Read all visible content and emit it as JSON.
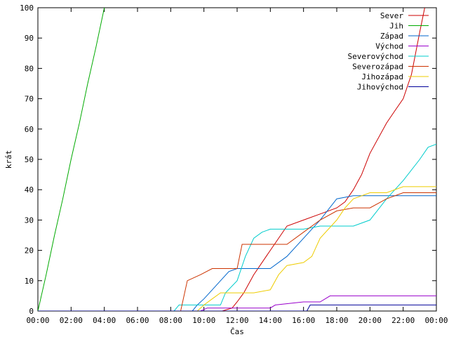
{
  "chart_data": {
    "type": "line",
    "title": "",
    "xlabel": "Čas",
    "ylabel": "krát",
    "xlim": [
      0,
      24
    ],
    "ylim": [
      0,
      100
    ],
    "x_ticks": [
      {
        "value": 0,
        "label": "00:00"
      },
      {
        "value": 2,
        "label": "02:00"
      },
      {
        "value": 4,
        "label": "04:00"
      },
      {
        "value": 6,
        "label": "06:00"
      },
      {
        "value": 8,
        "label": "08:00"
      },
      {
        "value": 10,
        "label": "10:00"
      },
      {
        "value": 12,
        "label": "12:00"
      },
      {
        "value": 14,
        "label": "14:00"
      },
      {
        "value": 16,
        "label": "16:00"
      },
      {
        "value": 18,
        "label": "18:00"
      },
      {
        "value": 20,
        "label": "20:00"
      },
      {
        "value": 22,
        "label": "22:00"
      },
      {
        "value": 24,
        "label": "00:00"
      }
    ],
    "y_ticks": [
      {
        "value": 0,
        "label": "0"
      },
      {
        "value": 10,
        "label": "10"
      },
      {
        "value": 20,
        "label": "20"
      },
      {
        "value": 30,
        "label": "30"
      },
      {
        "value": 40,
        "label": "40"
      },
      {
        "value": 50,
        "label": "50"
      },
      {
        "value": 60,
        "label": "60"
      },
      {
        "value": 70,
        "label": "70"
      },
      {
        "value": 80,
        "label": "80"
      },
      {
        "value": 90,
        "label": "90"
      },
      {
        "value": 100,
        "label": "100"
      }
    ],
    "grid": false,
    "legend_position": "top-right",
    "series": [
      {
        "name": "Sever",
        "color": "#cc0000",
        "x": [
          0,
          11.1,
          11.7,
          12.0,
          12.4,
          13.0,
          14.0,
          15.0,
          16.0,
          17.0,
          18.0,
          18.5,
          19.0,
          19.5,
          20.0,
          21.0,
          21.5,
          22.0,
          22.5,
          23.0,
          23.3
        ],
        "y": [
          0,
          0,
          1,
          3,
          6,
          12,
          20,
          28,
          30,
          32,
          34,
          36,
          40,
          45,
          52,
          62,
          66,
          70,
          78,
          92,
          100
        ]
      },
      {
        "name": "Jih",
        "color": "#00aa00",
        "x": [
          0,
          0.5,
          1.0,
          1.5,
          2.0,
          2.5,
          3.0,
          3.5,
          4.0
        ],
        "y": [
          0,
          12,
          25,
          37,
          50,
          62,
          75,
          87,
          100
        ]
      },
      {
        "name": "Západ",
        "color": "#0066cc",
        "x": [
          0,
          9.3,
          9.6,
          10.0,
          10.5,
          11.0,
          11.5,
          12.0,
          14.0,
          15.0,
          16.0,
          17.0,
          18.0,
          19.0,
          20.0,
          21.0,
          24.0
        ],
        "y": [
          0,
          0,
          2,
          4,
          7,
          10,
          13,
          14,
          14,
          18,
          24,
          30,
          37,
          38,
          38,
          38,
          38
        ]
      },
      {
        "name": "Východ",
        "color": "#9900cc",
        "x": [
          0,
          9.8,
          10.2,
          14.0,
          14.3,
          16.0,
          17.0,
          17.6,
          24.0
        ],
        "y": [
          0,
          0,
          1,
          1,
          2,
          3,
          3,
          5,
          5
        ]
      },
      {
        "name": "Severovýchod",
        "color": "#00cccc",
        "x": [
          0,
          8.2,
          8.5,
          11.0,
          11.3,
          12.0,
          12.5,
          13.0,
          13.5,
          14.0,
          14.5,
          16.0,
          17.0,
          18.0,
          19.0,
          20.0,
          21.0,
          22.0,
          23.0,
          23.5,
          24.0
        ],
        "y": [
          0,
          0,
          2,
          2,
          6,
          10,
          18,
          24,
          26,
          27,
          27,
          27,
          28,
          28,
          28,
          30,
          37,
          43,
          50,
          54,
          55
        ]
      },
      {
        "name": "Severozápad",
        "color": "#cc3300",
        "x": [
          0,
          8.6,
          9.0,
          9.8,
          10.5,
          12.0,
          12.3,
          14.0,
          15.0,
          16.0,
          17.0,
          18.0,
          19.0,
          20.0,
          21.0,
          22.0,
          24.0
        ],
        "y": [
          0,
          0,
          10,
          12,
          14,
          14,
          22,
          22,
          22,
          26,
          30,
          33,
          34,
          34,
          37,
          39,
          39
        ]
      },
      {
        "name": "Jihozápad",
        "color": "#eecc00",
        "x": [
          0,
          9.6,
          10.0,
          10.5,
          11.0,
          13.0,
          14.0,
          14.5,
          15.0,
          16.0,
          16.5,
          17.0,
          18.0,
          18.5,
          19.0,
          20.0,
          21.0,
          22.0,
          24.0
        ],
        "y": [
          0,
          0,
          2,
          4,
          6,
          6,
          7,
          12,
          15,
          16,
          18,
          24,
          30,
          34,
          37,
          39,
          39,
          41,
          41
        ]
      },
      {
        "name": "Jihovýchod",
        "color": "#000099",
        "x": [
          0,
          16.2,
          16.4,
          24.0
        ],
        "y": [
          0,
          0,
          2,
          2
        ]
      }
    ]
  }
}
